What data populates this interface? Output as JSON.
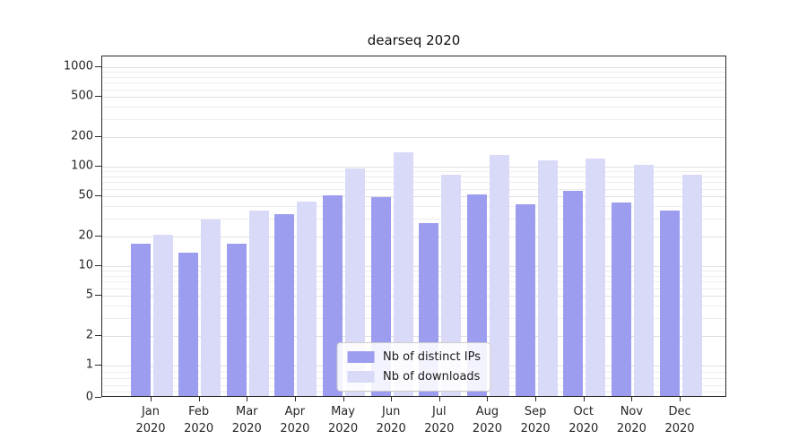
{
  "chart_data": {
    "type": "bar",
    "title": "dearseq 2020",
    "xlabel": "",
    "ylabel": "",
    "yscale": "symlog",
    "ylim": [
      0,
      1500
    ],
    "yticks": [
      0,
      1,
      2,
      5,
      10,
      20,
      50,
      100,
      200,
      500,
      1000
    ],
    "grid": true,
    "legend_position": "lower center",
    "categories": [
      {
        "month": "Jan",
        "year": "2020"
      },
      {
        "month": "Feb",
        "year": "2020"
      },
      {
        "month": "Mar",
        "year": "2020"
      },
      {
        "month": "Apr",
        "year": "2020"
      },
      {
        "month": "May",
        "year": "2020"
      },
      {
        "month": "Jun",
        "year": "2020"
      },
      {
        "month": "Jul",
        "year": "2020"
      },
      {
        "month": "Aug",
        "year": "2020"
      },
      {
        "month": "Sep",
        "year": "2020"
      },
      {
        "month": "Oct",
        "year": "2020"
      },
      {
        "month": "Nov",
        "year": "2020"
      },
      {
        "month": "Dec",
        "year": "2020"
      }
    ],
    "series": [
      {
        "name": "Nb of distinct IPs",
        "color": "#9d9df0",
        "values": [
          16,
          13,
          16,
          32,
          49,
          47,
          26,
          50,
          40,
          55,
          42,
          35
        ]
      },
      {
        "name": "Nb of downloads",
        "color": "#d9d9f8",
        "values": [
          20,
          28,
          35,
          43,
          92,
          135,
          80,
          125,
          110,
          115,
          100,
          80
        ]
      }
    ]
  }
}
